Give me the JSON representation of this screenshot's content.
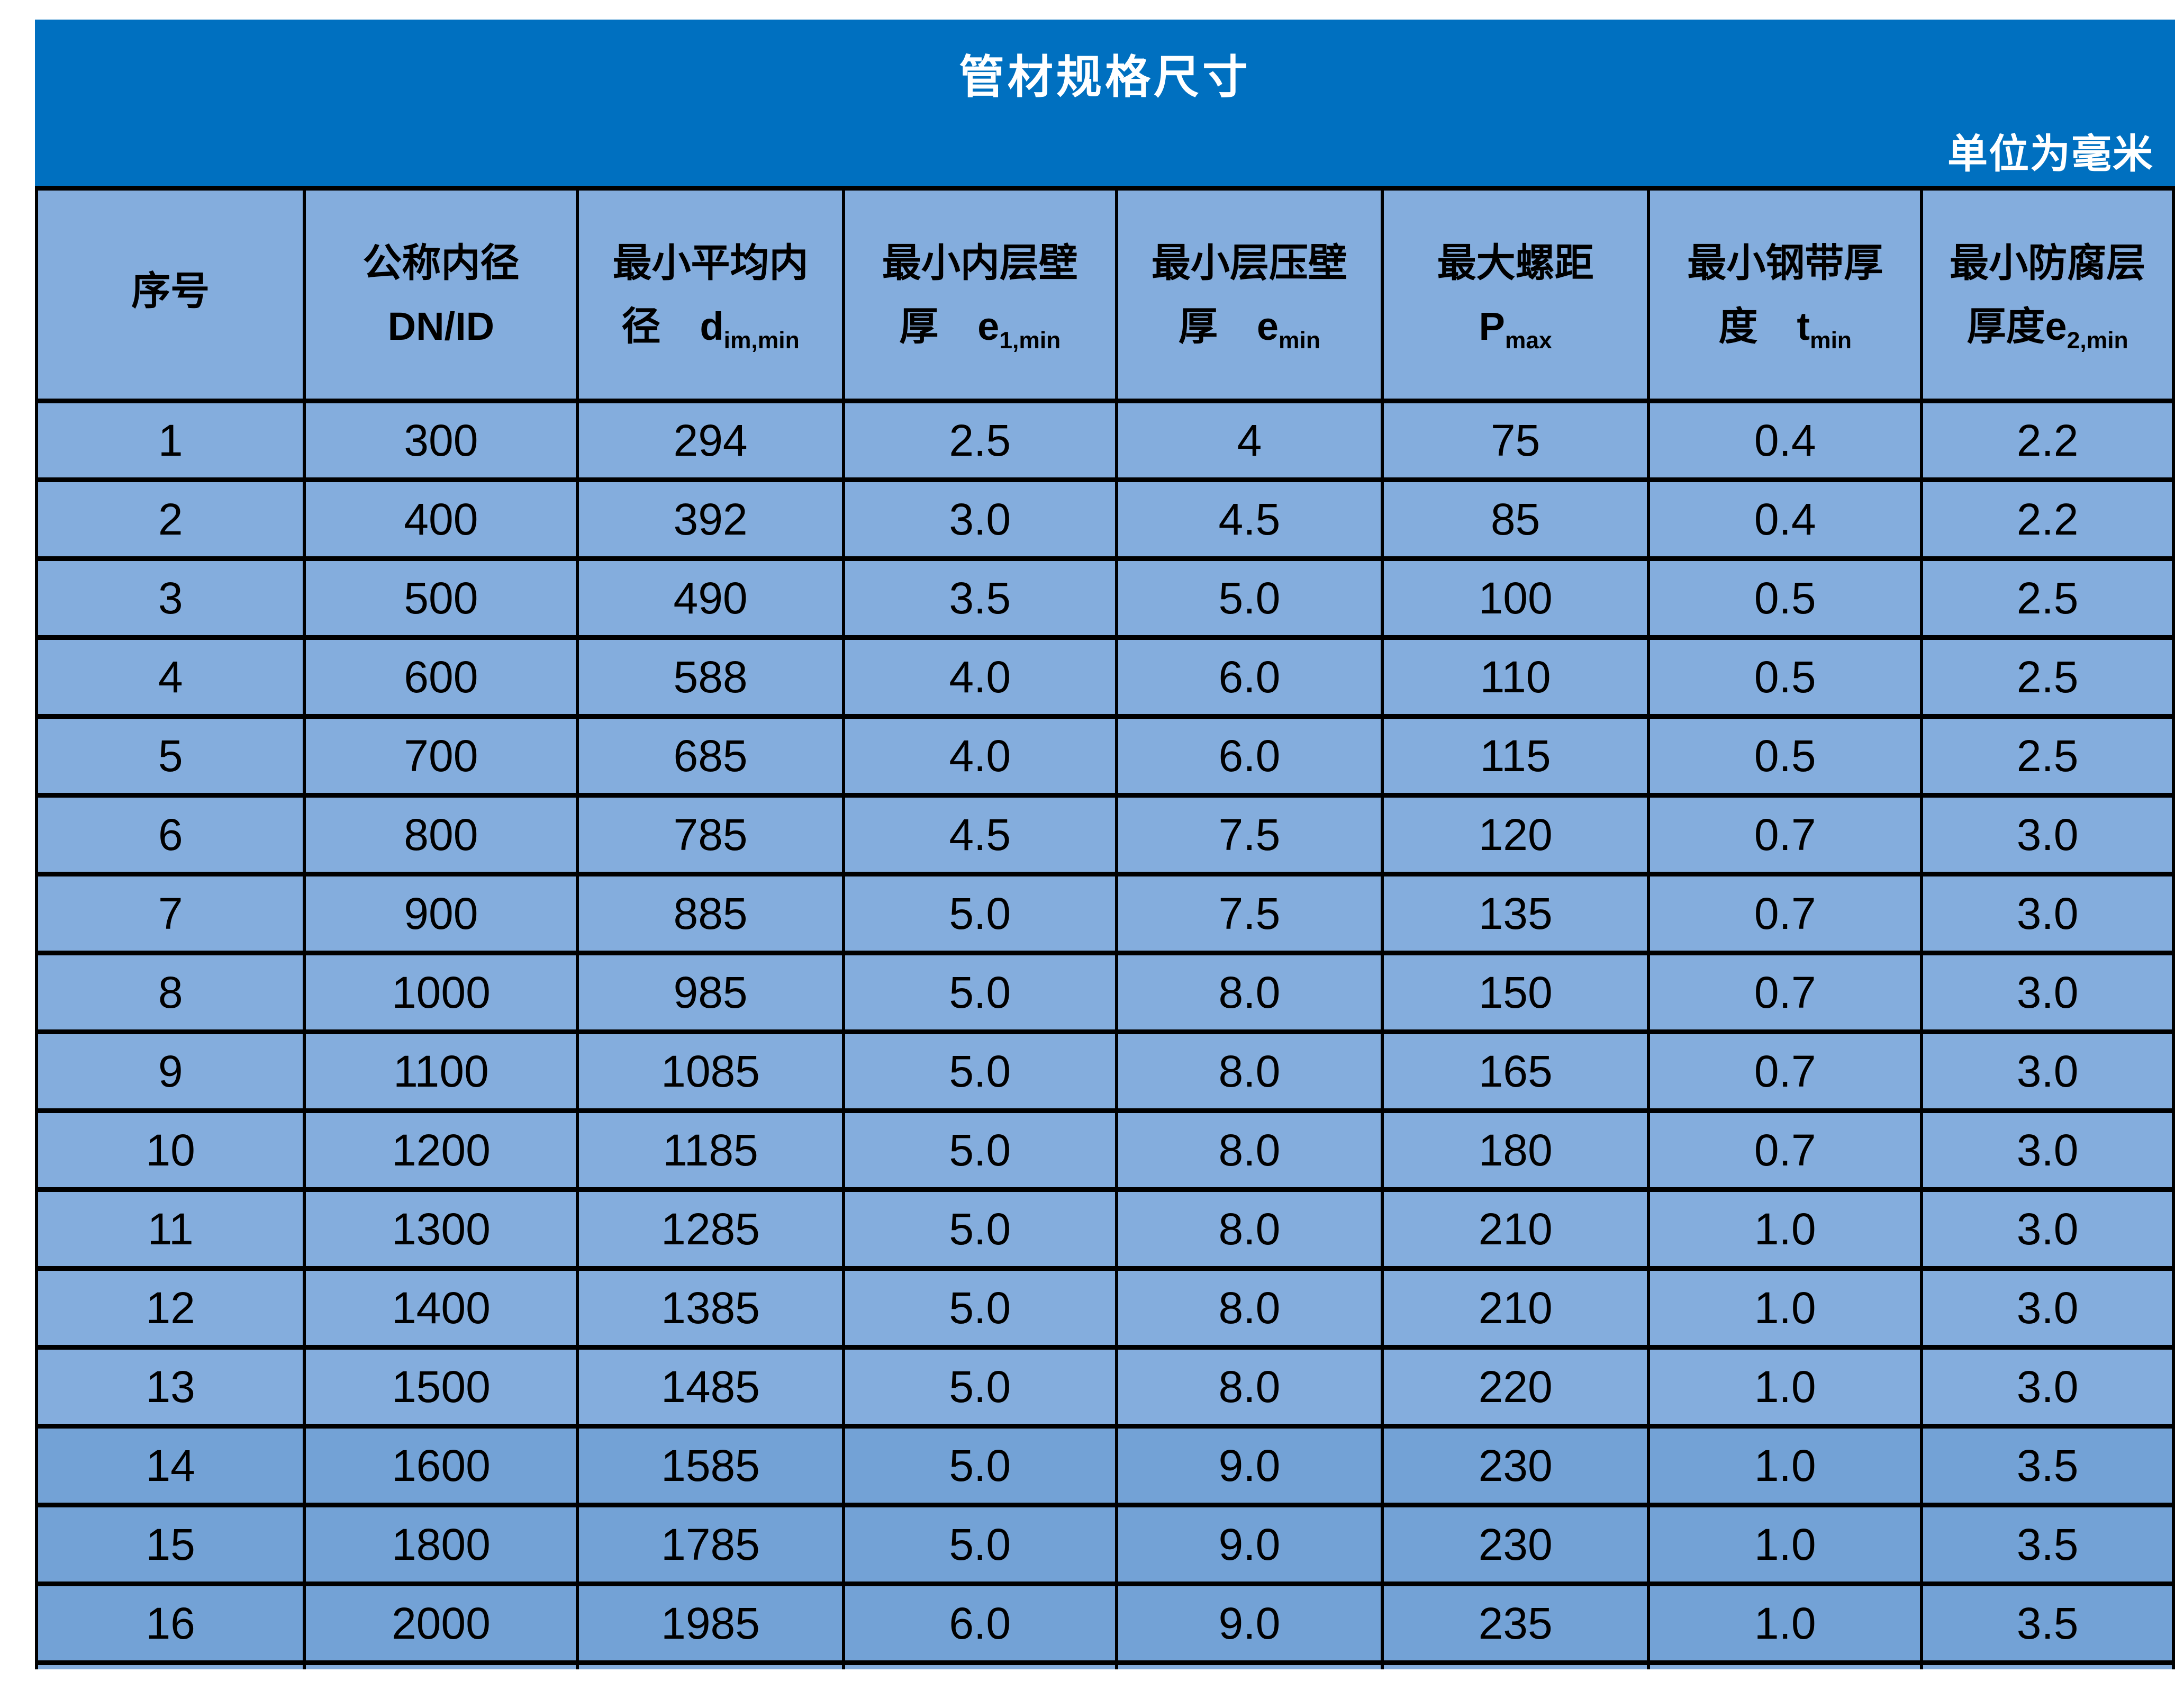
{
  "banner": {
    "title": "管材规格尺寸",
    "unit_note": "单位为毫米",
    "bg_color": "#0070C0",
    "text_color": "#FFFFFF"
  },
  "table": {
    "header": [
      {
        "l1": "序号",
        "l2pre": "",
        "l2sub": ""
      },
      {
        "l1": "公称内径",
        "l2pre": "DN/ID",
        "l2sub": ""
      },
      {
        "l1": "最小平均内",
        "l2pre": "径　d",
        "l2sub": "im,min"
      },
      {
        "l1": "最小内层壁",
        "l2pre": "厚　e",
        "l2sub": "1,min"
      },
      {
        "l1": "最小层压壁",
        "l2pre": "厚　e",
        "l2sub": "min"
      },
      {
        "l1": "最大螺距",
        "l2pre": "P",
        "l2sub": "max"
      },
      {
        "l1": "最小钢带厚",
        "l2pre": "度　t",
        "l2sub": "min"
      },
      {
        "l1": "最小防腐层",
        "l2pre": "厚度e",
        "l2sub": "2,min"
      }
    ],
    "rows": [
      [
        "1",
        "300",
        "294",
        "2.5",
        "4",
        "75",
        "0.4",
        "2.2"
      ],
      [
        "2",
        "400",
        "392",
        "3.0",
        "4.5",
        "85",
        "0.4",
        "2.2"
      ],
      [
        "3",
        "500",
        "490",
        "3.5",
        "5.0",
        "100",
        "0.5",
        "2.5"
      ],
      [
        "4",
        "600",
        "588",
        "4.0",
        "6.0",
        "110",
        "0.5",
        "2.5"
      ],
      [
        "5",
        "700",
        "685",
        "4.0",
        "6.0",
        "115",
        "0.5",
        "2.5"
      ],
      [
        "6",
        "800",
        "785",
        "4.5",
        "7.5",
        "120",
        "0.7",
        "3.0"
      ],
      [
        "7",
        "900",
        "885",
        "5.0",
        "7.5",
        "135",
        "0.7",
        "3.0"
      ],
      [
        "8",
        "1000",
        "985",
        "5.0",
        "8.0",
        "150",
        "0.7",
        "3.0"
      ],
      [
        "9",
        "1100",
        "1085",
        "5.0",
        "8.0",
        "165",
        "0.7",
        "3.0"
      ],
      [
        "10",
        "1200",
        "1185",
        "5.0",
        "8.0",
        "180",
        "0.7",
        "3.0"
      ],
      [
        "11",
        "1300",
        "1285",
        "5.0",
        "8.0",
        "210",
        "1.0",
        "3.0"
      ],
      [
        "12",
        "1400",
        "1385",
        "5.0",
        "8.0",
        "210",
        "1.0",
        "3.0"
      ],
      [
        "13",
        "1500",
        "1485",
        "5.0",
        "8.0",
        "220",
        "1.0",
        "3.0"
      ],
      [
        "14",
        "1600",
        "1585",
        "5.0",
        "9.0",
        "230",
        "1.0",
        "3.5"
      ],
      [
        "15",
        "1800",
        "1785",
        "5.0",
        "9.0",
        "230",
        "1.0",
        "3.5"
      ],
      [
        "16",
        "2000",
        "1985",
        "6.0",
        "9.0",
        "235",
        "1.0",
        "3.5"
      ]
    ],
    "dark_rows_from_index": 13,
    "colors": {
      "cell_light": "#84ADDD",
      "cell_dark": "#73A2D6",
      "border": "#000000"
    },
    "column_widths_percent": [
      12.54,
      12.78,
      12.44,
      12.78,
      12.44,
      12.46,
      12.78,
      11.78
    ]
  }
}
